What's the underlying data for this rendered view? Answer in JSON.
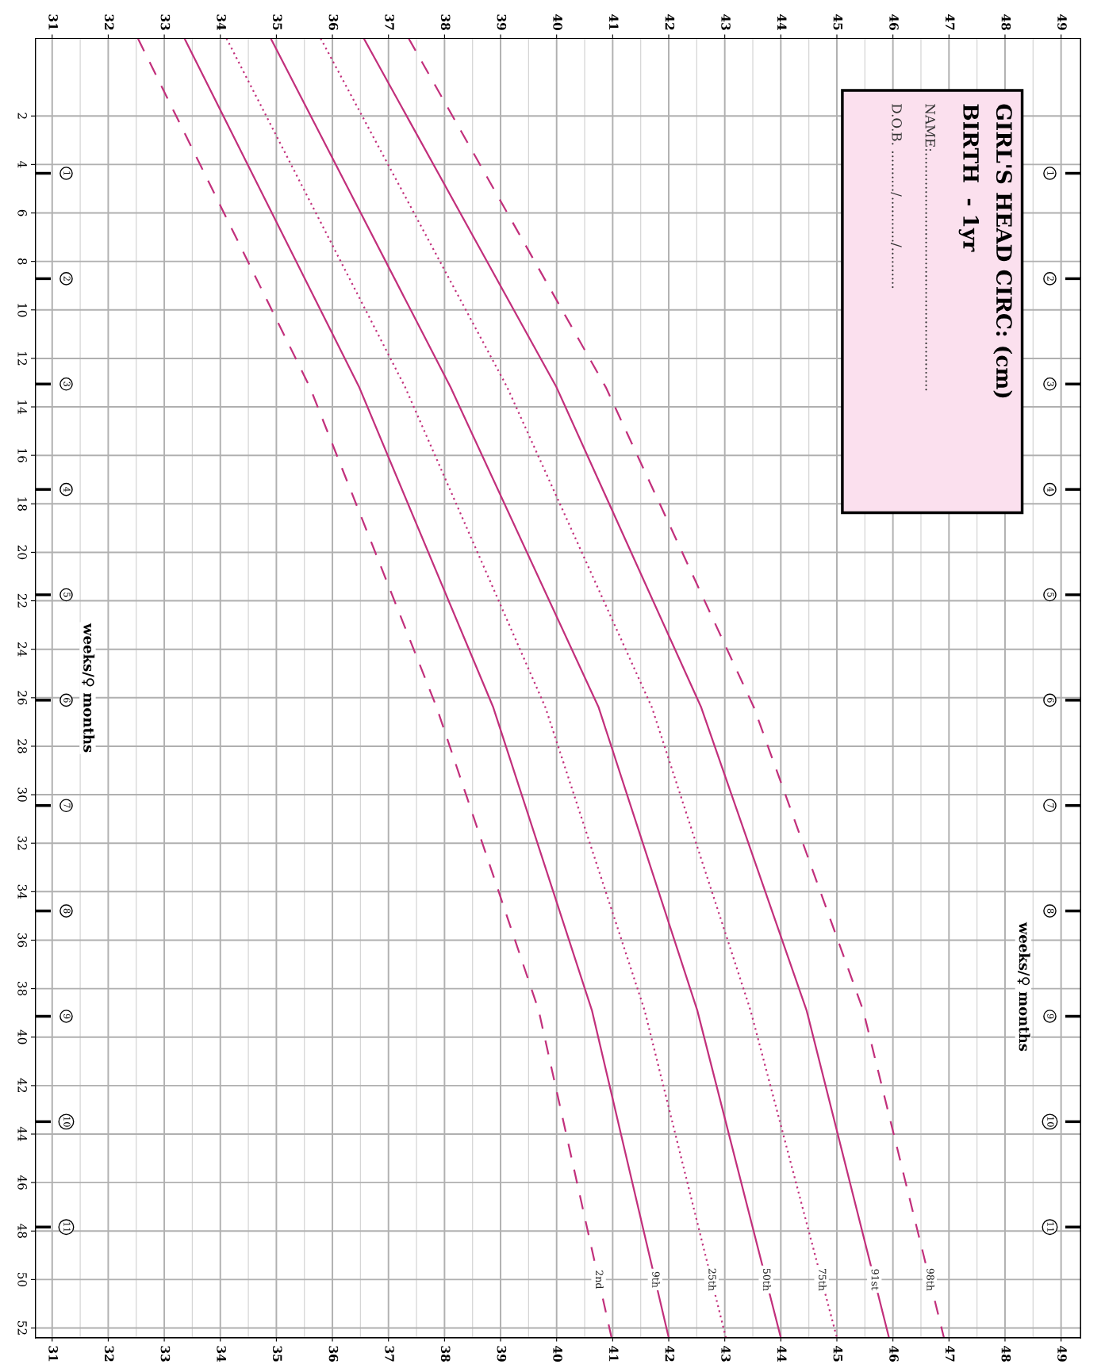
{
  "chart_data": {
    "type": "line",
    "title": "GIRL'S HEAD CIRC: (cm)",
    "subtitle": "BIRTH  - 1yr",
    "annotations": [
      "NAME:.........................................................",
      "D.O.B. ........../.........../.........."
    ],
    "y2label": "weeks/♀ months",
    "y3label": "weeks/♀ months",
    "orientation": "horizontal",
    "x": [
      -1.2,
      13.2,
      26.4,
      38.9,
      52.4
    ],
    "xlim": [
      30.7,
      49.35
    ],
    "xticks": [
      31,
      32,
      33,
      34,
      35,
      36,
      37,
      38,
      39,
      40,
      41,
      42,
      43,
      44,
      45,
      46,
      47,
      48,
      49
    ],
    "x2lim": [
      30.7,
      49.35
    ],
    "x2ticks": [
      31,
      32,
      33,
      34,
      35,
      36,
      37,
      38,
      39,
      40,
      41,
      42,
      43,
      44,
      45,
      46,
      47,
      48,
      49
    ],
    "ylim": [
      52.4,
      -1.2
    ],
    "yticks": [
      2,
      4,
      6,
      8,
      10,
      12,
      14,
      16,
      18,
      20,
      22,
      24,
      26,
      28,
      30,
      32,
      34,
      36,
      38,
      40,
      42,
      44,
      46,
      48,
      50,
      52
    ],
    "y2lim": [
      12.05,
      -0.28
    ],
    "y2ticks": [
      1,
      2,
      3,
      4,
      5,
      6,
      7,
      8,
      9,
      10,
      11
    ],
    "y3lim": [
      12.05,
      -0.28
    ],
    "y3ticks": [
      1,
      2,
      3,
      4,
      5,
      6,
      7,
      8,
      9,
      10,
      11
    ],
    "grid": true,
    "marker": "none",
    "series": [
      {
        "name": "2nd",
        "color": "#c2307c",
        "line_style": "dashed",
        "values": [
          32.53,
          35.6,
          37.86,
          39.68,
          40.98
        ]
      },
      {
        "name": "9th",
        "color": "#c2307c",
        "line_style": "solid",
        "values": [
          33.36,
          36.48,
          38.87,
          40.63,
          42.0
        ]
      },
      {
        "name": "25th",
        "color": "#c2307c",
        "line_style": "dotted",
        "values": [
          34.11,
          37.3,
          39.8,
          41.57,
          43.02
        ]
      },
      {
        "name": "50th",
        "color": "#c2307c",
        "line_style": "solid",
        "values": [
          34.9,
          38.11,
          40.75,
          42.51,
          44.0
        ]
      },
      {
        "name": "75th",
        "color": "#c2307c",
        "line_style": "dotted",
        "values": [
          35.79,
          39.12,
          41.7,
          43.46,
          45.0
        ]
      },
      {
        "name": "91st",
        "color": "#c2307c",
        "line_style": "solid",
        "values": [
          36.56,
          40.0,
          42.58,
          44.46,
          45.93
        ]
      },
      {
        "name": "98th",
        "color": "#c2307c",
        "line_style": "dashed",
        "values": [
          37.36,
          40.88,
          43.52,
          45.47,
          46.91
        ]
      }
    ]
  }
}
